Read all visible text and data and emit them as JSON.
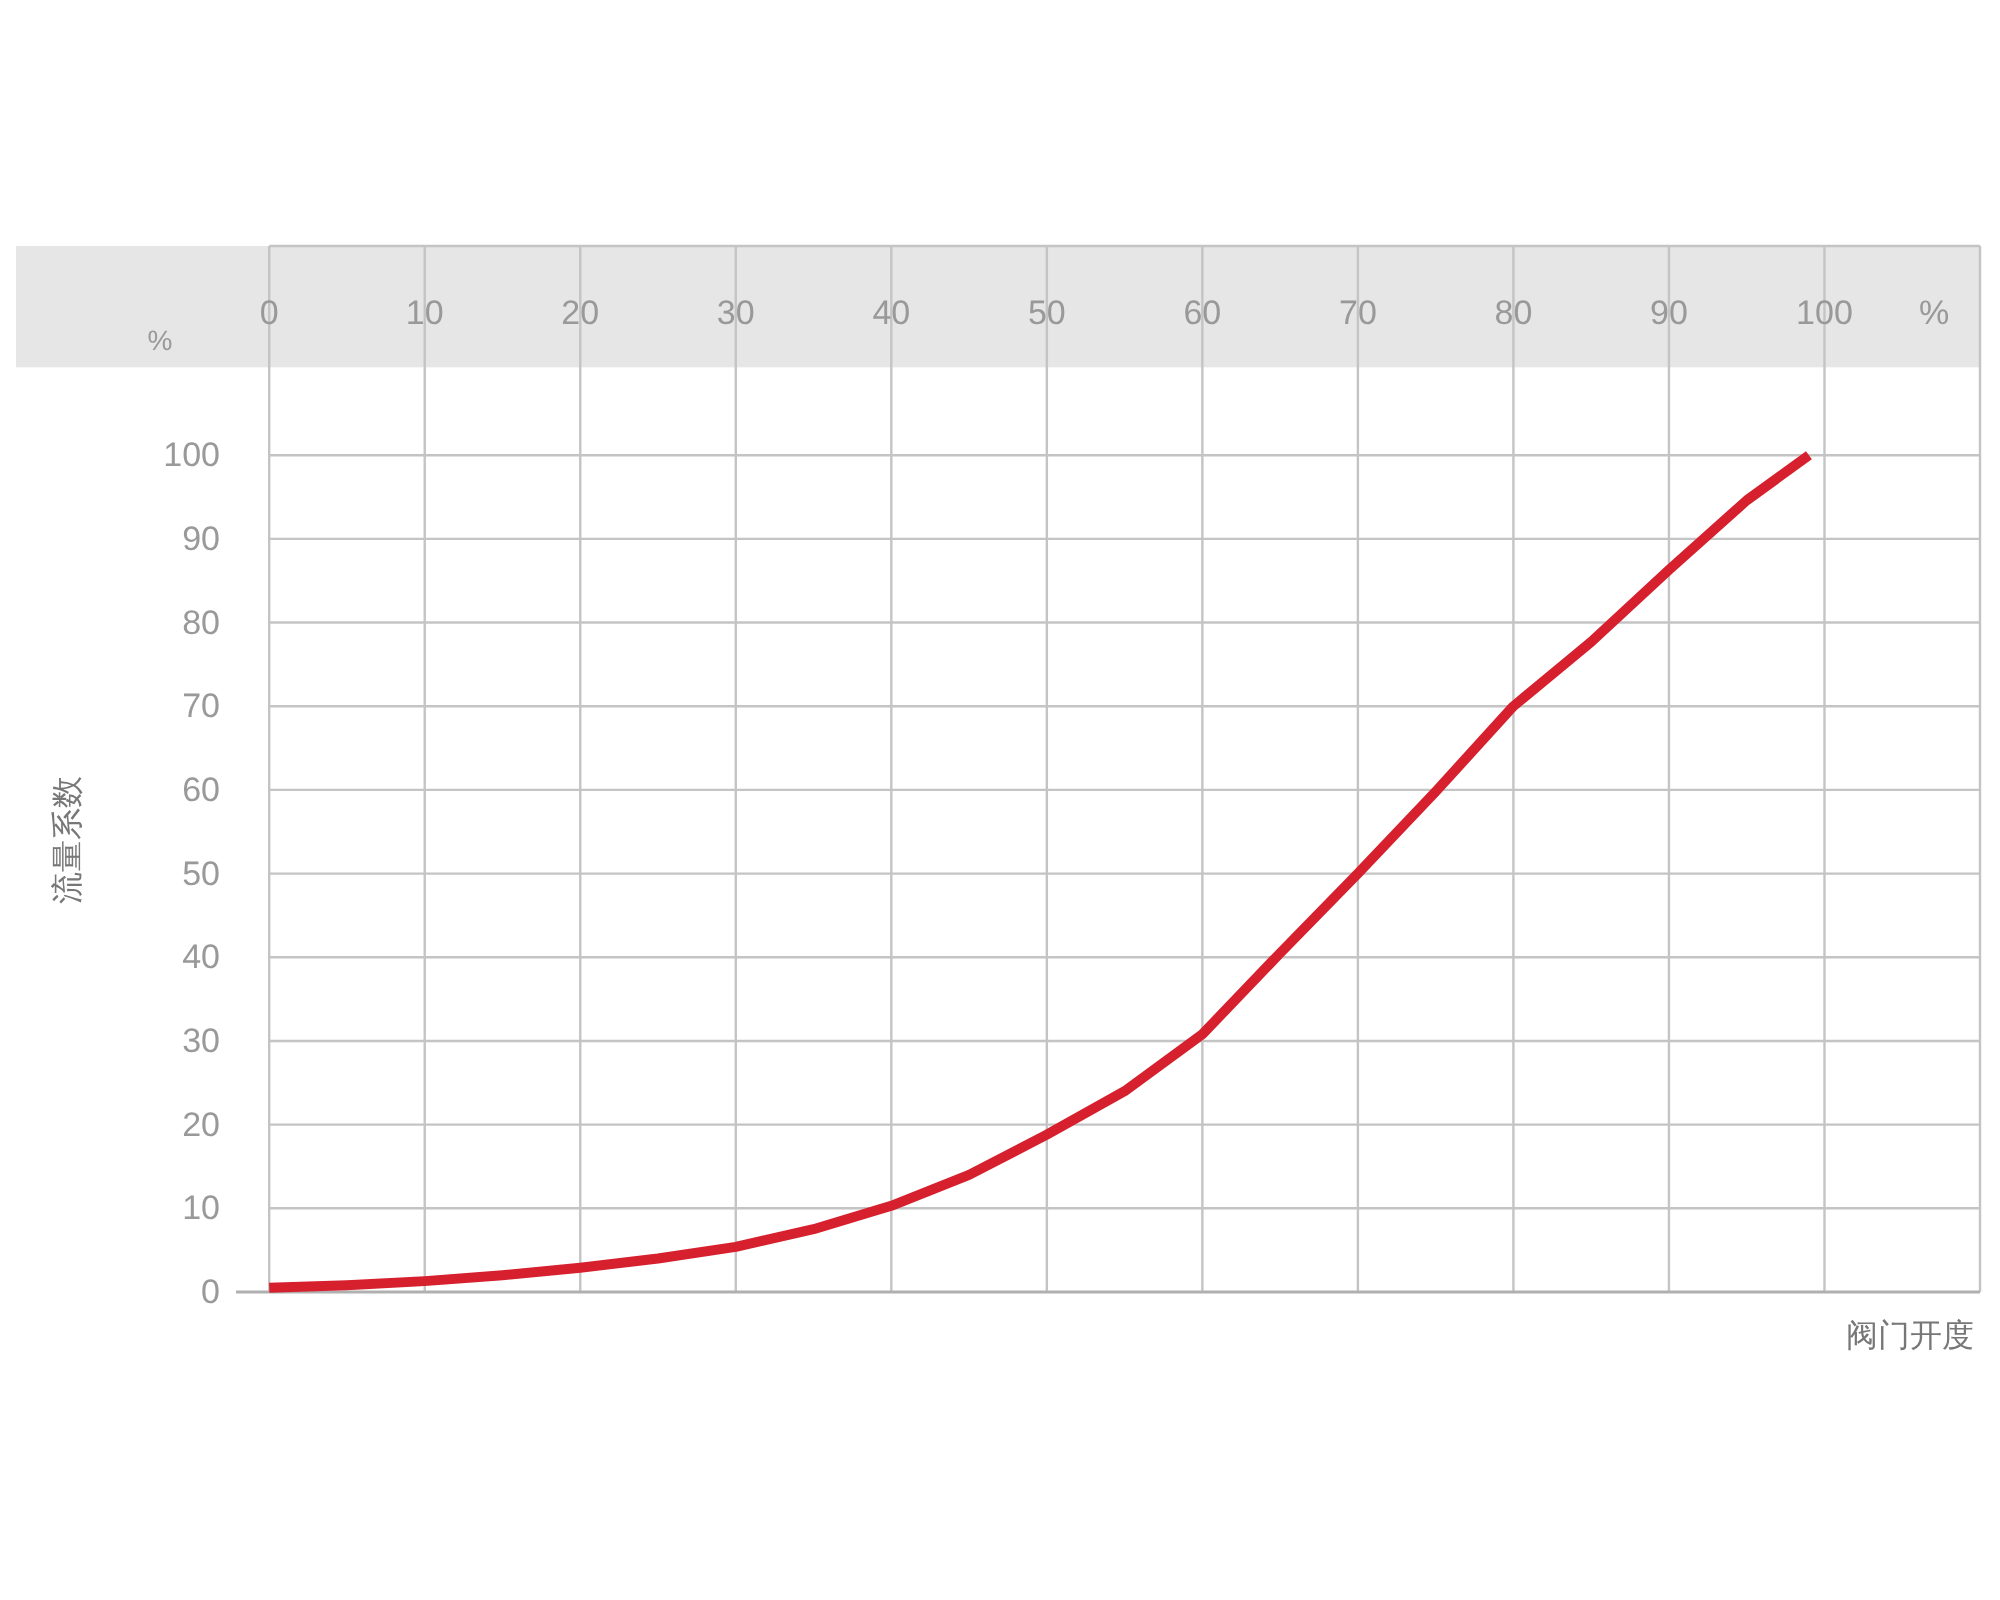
{
  "chart_data": {
    "type": "line",
    "xlabel": "阀门开度",
    "ylabel": "流量系数",
    "annotations": [
      "%",
      "%"
    ],
    "x": [
      0,
      5,
      10,
      15,
      20,
      25,
      30,
      35,
      40,
      45,
      50,
      55,
      60,
      65,
      70,
      75,
      80,
      85,
      90,
      95,
      99
    ],
    "series": [
      {
        "color": "#d6202e",
        "values": [
          0.5,
          0.8,
          1.3,
          2,
          2.9,
          4,
          5.4,
          7.5,
          10.3,
          14,
          18.8,
          24,
          30.8,
          40.5,
          50,
          59.8,
          70,
          77.7,
          86.3,
          94.6,
          100
        ]
      }
    ],
    "xlim": [
      0,
      110
    ],
    "ylim": [
      0,
      125
    ],
    "xticks": [
      0,
      10,
      20,
      30,
      40,
      50,
      60,
      70,
      80,
      90,
      100
    ],
    "yticks": [
      0,
      10,
      20,
      30,
      40,
      50,
      60,
      70,
      80,
      90,
      100
    ],
    "bands": [
      {
        "axis": "y",
        "from": 110.5,
        "to": 125,
        "color": "#e6e6e6"
      }
    ],
    "grid": true,
    "marker": "none",
    "line_style": "solid"
  }
}
